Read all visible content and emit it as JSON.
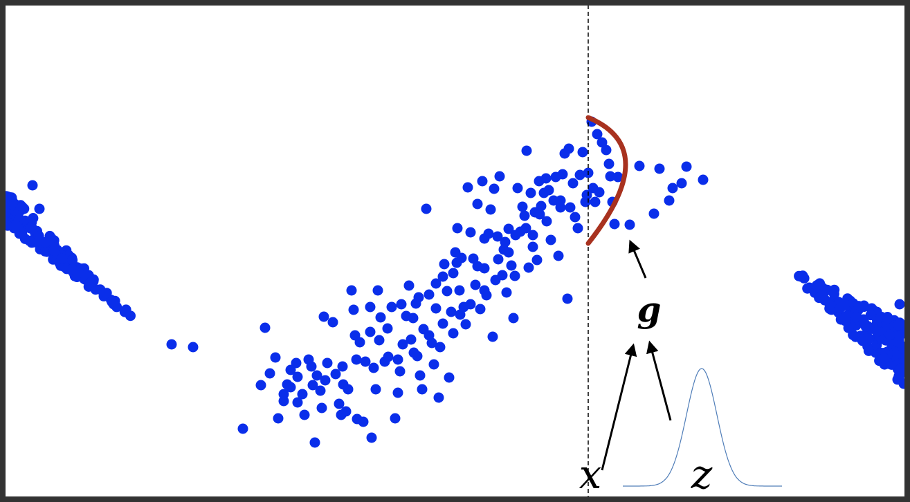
{
  "labels": {
    "x": "x",
    "z": "z",
    "g": "g"
  },
  "colors": {
    "points": "#0a2eea",
    "curve": "#a8321f",
    "gaussian": "#4f7db8",
    "frame": "#333333",
    "arrows": "#000000",
    "dashed_line": "#000000"
  }
}
